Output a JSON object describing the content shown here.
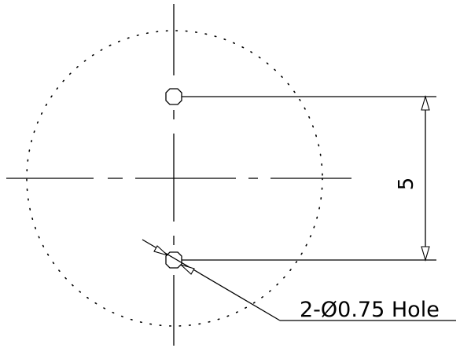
{
  "drawing": {
    "dimension_value": "5",
    "hole_callout": "2-Ø0.75 Hole"
  }
}
